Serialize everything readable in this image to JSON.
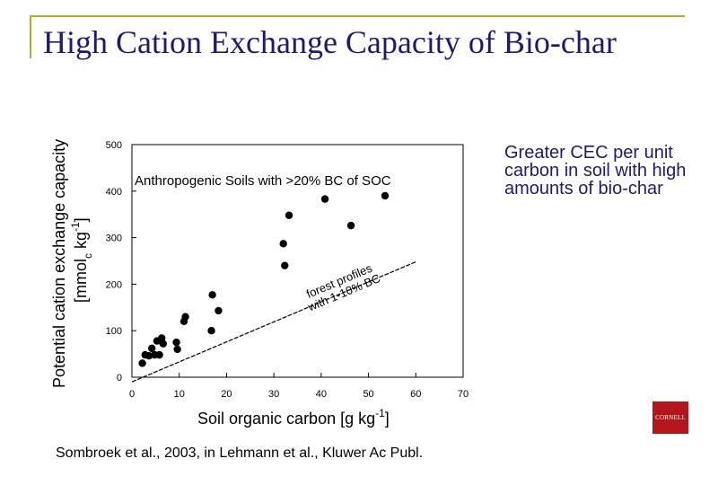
{
  "slide": {
    "title": "High Cation Exchange Capacity of Bio-char",
    "side_note": "Greater CEC per unit carbon in soil with high amounts of bio-char",
    "citation": "Sombroek et al., 2003, in Lehmann et al., Kluwer Ac Publ.",
    "logo_text": "CORNELL",
    "accent_color": "#c9a227",
    "title_color": "#1e1b6e",
    "logo_color": "#b3171b"
  },
  "chart_data": {
    "type": "scatter",
    "title": "Anthropogenic Soils with >20% BC of SOC",
    "xlabel": "Soil organic carbon [g kg-1]",
    "ylabel_line1": "Potential cation exchange capacity",
    "ylabel_line2": "[mmolc kg-1]",
    "xlim": [
      0,
      70
    ],
    "ylim": [
      0,
      500
    ],
    "xticks": [
      0,
      10,
      20,
      30,
      40,
      50,
      60,
      70
    ],
    "yticks": [
      0,
      100,
      200,
      300,
      400,
      500
    ],
    "grid": false,
    "points": [
      {
        "x": 2.2,
        "y": 30
      },
      {
        "x": 2.8,
        "y": 48
      },
      {
        "x": 3.6,
        "y": 46
      },
      {
        "x": 4.2,
        "y": 62
      },
      {
        "x": 4.8,
        "y": 48
      },
      {
        "x": 5.3,
        "y": 78
      },
      {
        "x": 5.8,
        "y": 48
      },
      {
        "x": 6.3,
        "y": 84
      },
      {
        "x": 6.6,
        "y": 72
      },
      {
        "x": 9.4,
        "y": 75
      },
      {
        "x": 9.6,
        "y": 60
      },
      {
        "x": 11.0,
        "y": 120
      },
      {
        "x": 11.3,
        "y": 130
      },
      {
        "x": 16.8,
        "y": 100
      },
      {
        "x": 17.0,
        "y": 177
      },
      {
        "x": 18.3,
        "y": 143
      },
      {
        "x": 32.0,
        "y": 287
      },
      {
        "x": 32.3,
        "y": 240
      },
      {
        "x": 33.2,
        "y": 348
      },
      {
        "x": 40.8,
        "y": 383
      },
      {
        "x": 46.3,
        "y": 326
      },
      {
        "x": 53.5,
        "y": 390
      }
    ],
    "reference_line": {
      "label_line1": "forest profiles",
      "label_line2": "with 1-10% BC",
      "x": [
        0,
        60
      ],
      "y": [
        -10,
        248
      ]
    }
  }
}
